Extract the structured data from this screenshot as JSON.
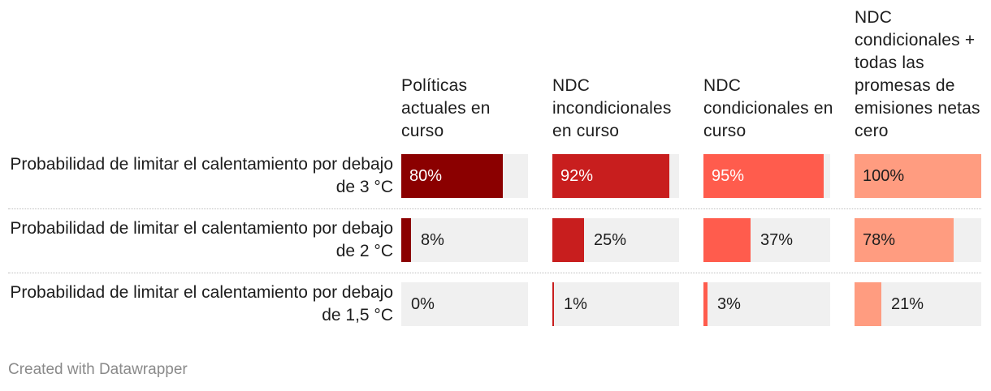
{
  "chart_data": {
    "type": "table",
    "columns": [
      {
        "header": "Políticas actuales en curso",
        "color": "#8b0000"
      },
      {
        "header": "NDC incondicionales en curso",
        "color": "#c81e1e"
      },
      {
        "header": "NDC condicionales en curso",
        "color": "#ff5c4d"
      },
      {
        "header": "NDC condicionales + todas las promesas de emisiones netas cero",
        "color": "#ff9c80"
      }
    ],
    "rows": [
      {
        "label": "Probabilidad de limitar el calentamiento por debajo de 3 °C",
        "values": [
          80,
          92,
          95,
          100
        ],
        "labels": [
          "80%",
          "92%",
          "95%",
          "100%"
        ]
      },
      {
        "label": "Probabilidad de limitar el calentamiento por debajo de 2 °C",
        "values": [
          8,
          25,
          37,
          78
        ],
        "labels": [
          "8%",
          "25%",
          "37%",
          "78%"
        ]
      },
      {
        "label": "Probabilidad de limitar el calentamiento por debajo de 1,5 °C",
        "values": [
          0,
          1,
          3,
          21
        ],
        "labels": [
          "0%",
          "1%",
          "3%",
          "21%"
        ]
      }
    ],
    "value_max": 100
  },
  "footer": {
    "credit": "Created with Datawrapper"
  }
}
